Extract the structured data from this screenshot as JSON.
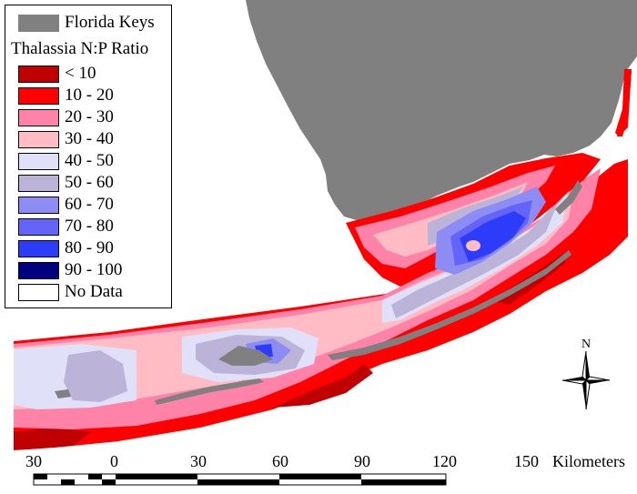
{
  "legend": {
    "land_label": "Florida Keys",
    "title": "Thalassia N:P Ratio",
    "classes": [
      {
        "label": "< 10",
        "color": "#c00000"
      },
      {
        "label": "10 - 20",
        "color": "#ff0000"
      },
      {
        "label": "20 - 30",
        "color": "#ff82a8"
      },
      {
        "label": "30 - 40",
        "color": "#ffbcc4"
      },
      {
        "label": "40 - 50",
        "color": "#e0e0f8"
      },
      {
        "label": "50 - 60",
        "color": "#bcb4d8"
      },
      {
        "label": "60 - 70",
        "color": "#8c8cf4"
      },
      {
        "label": "70 - 80",
        "color": "#6464f8"
      },
      {
        "label": "80 - 90",
        "color": "#2c3cf8"
      },
      {
        "label": "90 - 100",
        "color": "#000080"
      },
      {
        "label": "No Data",
        "color": "#ffffff"
      }
    ]
  },
  "colors": {
    "land": "#808080",
    "water": "#ffffff"
  },
  "scale_bar": {
    "ticks": [
      "30",
      "0",
      "30",
      "60",
      "90",
      "120",
      "150"
    ],
    "units": "Kilometers"
  },
  "north_arrow": {
    "label": "N",
    "icon": "north-arrow-icon"
  }
}
